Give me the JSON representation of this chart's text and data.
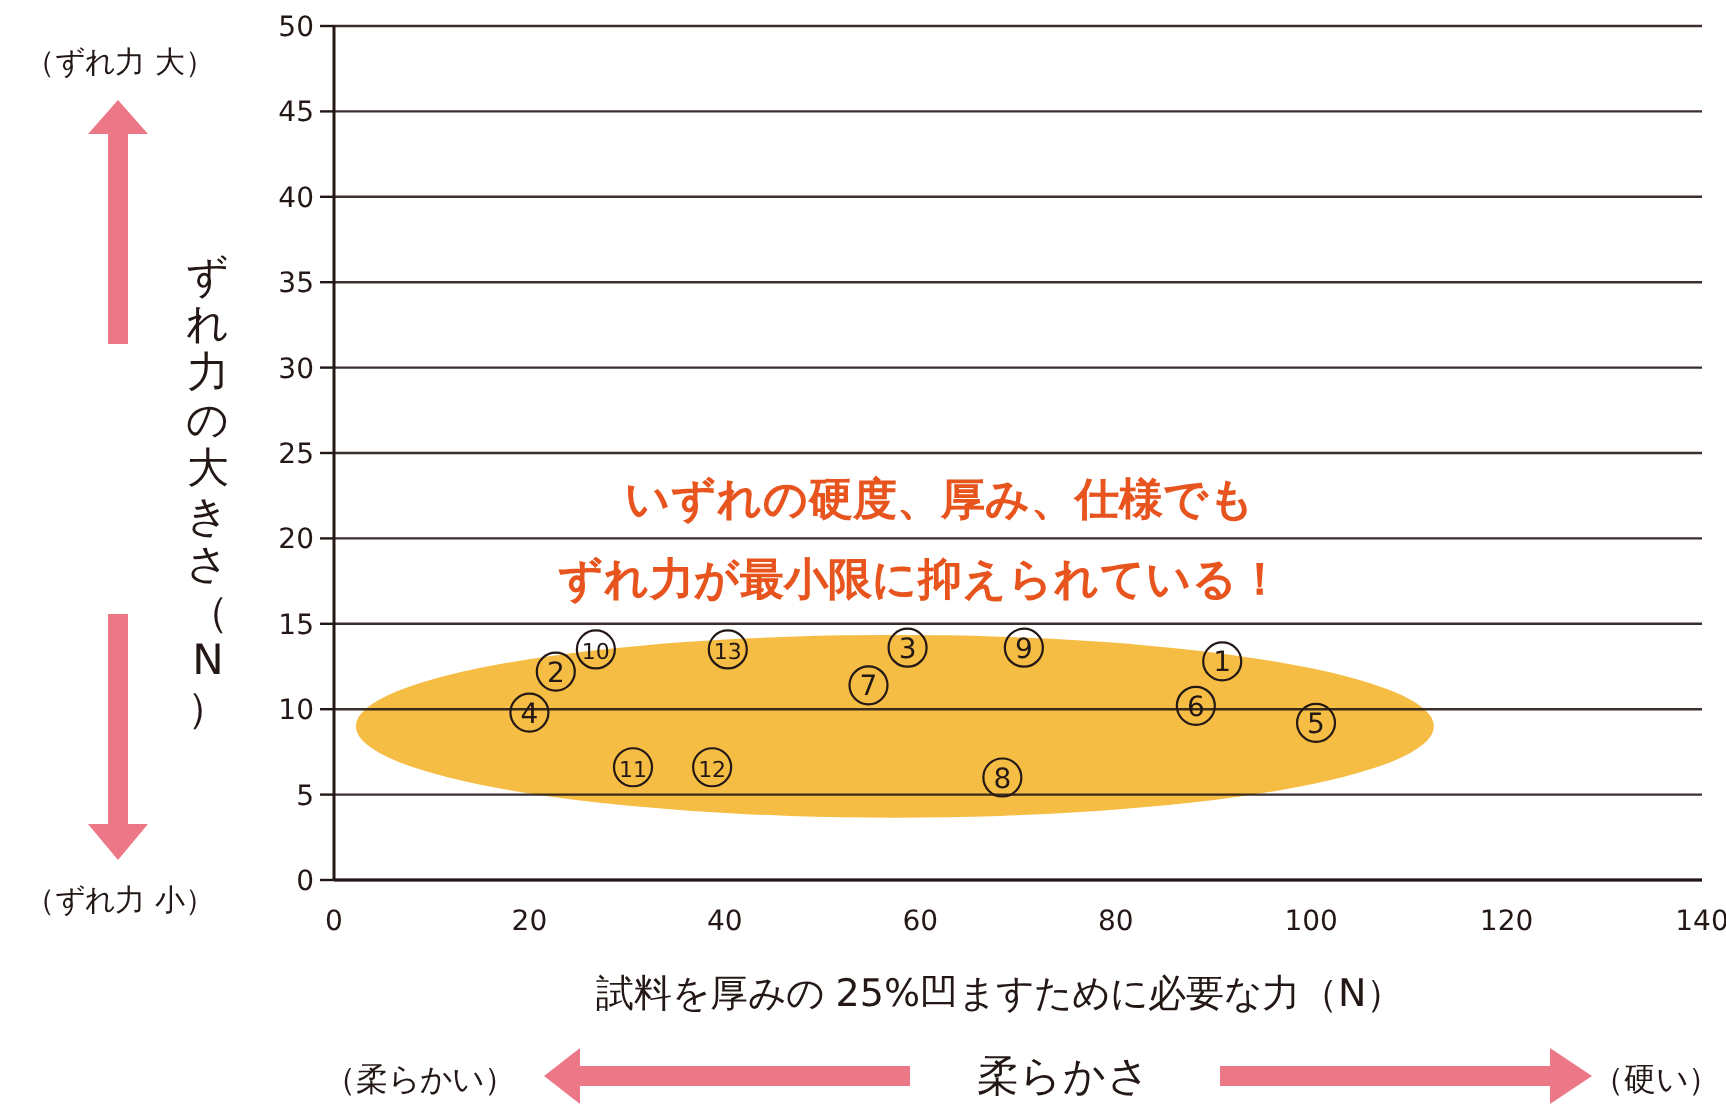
{
  "chart_data": {
    "type": "scatter",
    "xlabel": "試料を厚みの 25%凹ますために必要な力（N）",
    "ylabel": "ずれ力の大きさ（N）",
    "xlim": [
      0,
      140
    ],
    "xticks": [
      0,
      20,
      40,
      60,
      80,
      100,
      120,
      140
    ],
    "ylim": [
      0,
      50
    ],
    "yticks": [
      0,
      5,
      10,
      15,
      20,
      25,
      30,
      35,
      40,
      45,
      50
    ],
    "grid": "y",
    "marker": "circle",
    "series": [
      {
        "color": "#231815",
        "x": [
          90.9,
          22.7,
          58.7,
          20.0,
          100.5,
          88.2,
          54.7,
          68.4,
          70.6,
          26.8,
          30.6,
          38.7,
          40.3
        ],
        "values": [
          12.8,
          12.2,
          13.6,
          9.8,
          9.2,
          10.2,
          11.4,
          6.0,
          13.6,
          13.5,
          6.6,
          6.6,
          13.5
        ]
      }
    ],
    "annotations": [
      {
        "text": "1",
        "x": 90.9,
        "y": 12.8
      },
      {
        "text": "2",
        "x": 22.7,
        "y": 12.2
      },
      {
        "text": "3",
        "x": 58.7,
        "y": 13.6
      },
      {
        "text": "4",
        "x": 20.0,
        "y": 9.8
      },
      {
        "text": "5",
        "x": 100.5,
        "y": 9.2
      },
      {
        "text": "6",
        "x": 88.2,
        "y": 10.2
      },
      {
        "text": "7",
        "x": 54.7,
        "y": 11.4
      },
      {
        "text": "8",
        "x": 68.4,
        "y": 6.0
      },
      {
        "text": "9",
        "x": 70.6,
        "y": 13.6
      },
      {
        "text": "10",
        "x": 26.8,
        "y": 13.5
      },
      {
        "text": "11",
        "x": 30.6,
        "y": 6.6
      },
      {
        "text": "12",
        "x": 38.7,
        "y": 6.6
      },
      {
        "text": "13",
        "x": 40.3,
        "y": 13.5
      },
      "いずれの硬度、厚み、仕様でも",
      "ずれ力が最小限に抑えられている！",
      "（ずれ力 大）",
      "（ずれ力 小）",
      "（柔らかい）",
      "柔らかさ",
      "（硬い）"
    ]
  }
}
